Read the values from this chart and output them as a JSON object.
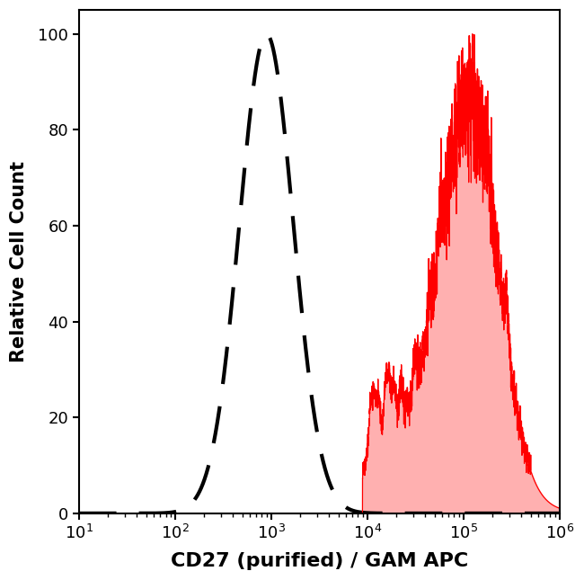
{
  "title": "",
  "xlabel": "CD27 (purified) / GAM APC",
  "ylabel": "Relative Cell Count",
  "xlim_log": [
    1,
    6
  ],
  "ylim": [
    0,
    105
  ],
  "yticks": [
    0,
    20,
    40,
    60,
    80,
    100
  ],
  "xlabel_fontsize": 16,
  "ylabel_fontsize": 15,
  "tick_fontsize": 13,
  "background_color": "#ffffff",
  "plot_bg_color": "#ffffff",
  "dashed_color": "#000000",
  "dashed_peak_log": 2.95,
  "dashed_sigma_log": 0.28,
  "dashed_peak_height": 100,
  "dashed_linewidth": 3.0,
  "red_color": "#ff0000",
  "red_fill_color": "#ffb0b0",
  "red_peak_log": 5.08,
  "red_sigma_log": 0.28,
  "red_base_start_log": 3.95,
  "red_peak_height": 100,
  "noise_seed": 42
}
